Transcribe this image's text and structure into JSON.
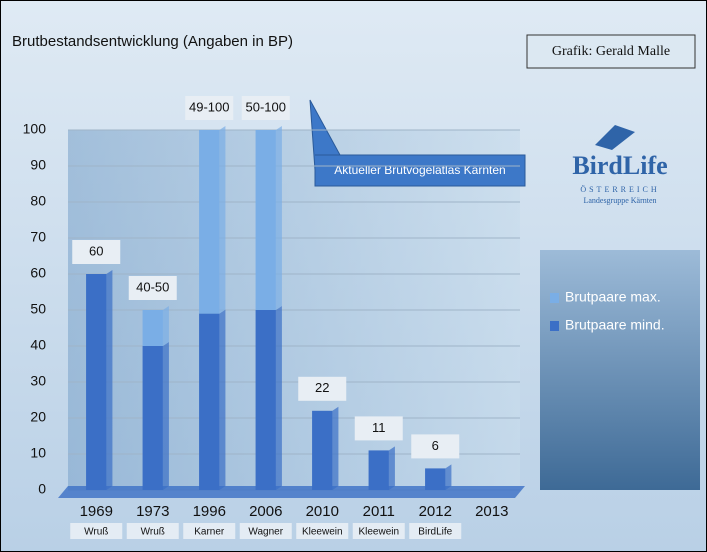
{
  "chart_data": {
    "type": "bar",
    "title": "Brutbestandsentwicklung (Angaben in BP)",
    "credit": "Grafik: Gerald Malle",
    "annotation": "Aktueller Brutvogelatlas Kärnten",
    "logo": {
      "name": "BirdLife",
      "country": "ÖSTERREICH",
      "group": "Landesgruppe Kärnten"
    },
    "categories": [
      "1969",
      "1973",
      "1996",
      "2006",
      "2010",
      "2011",
      "2012",
      "2013"
    ],
    "sources": [
      "Wruß",
      "Wruß",
      "Karner",
      "Wagner",
      "Kleewein",
      "Kleewein",
      "BirdLife",
      null
    ],
    "series": [
      {
        "name": "Brutpaare mind.",
        "color": "#3b6fc6",
        "values": [
          60,
          40,
          49,
          50,
          22,
          11,
          6,
          null
        ],
        "value_labels": [
          "60",
          "40-50",
          "49-100",
          "50-100",
          "22",
          "11",
          "6",
          null
        ]
      },
      {
        "name": "Brutpaare max.",
        "color": "#7aaee6",
        "values": [
          null,
          10,
          51,
          50,
          null,
          null,
          null,
          null
        ]
      }
    ],
    "ylim": [
      0,
      100
    ],
    "yticks": [
      0,
      10,
      20,
      30,
      40,
      50,
      60,
      70,
      80,
      90,
      100
    ],
    "grid": true,
    "stacked": true
  }
}
